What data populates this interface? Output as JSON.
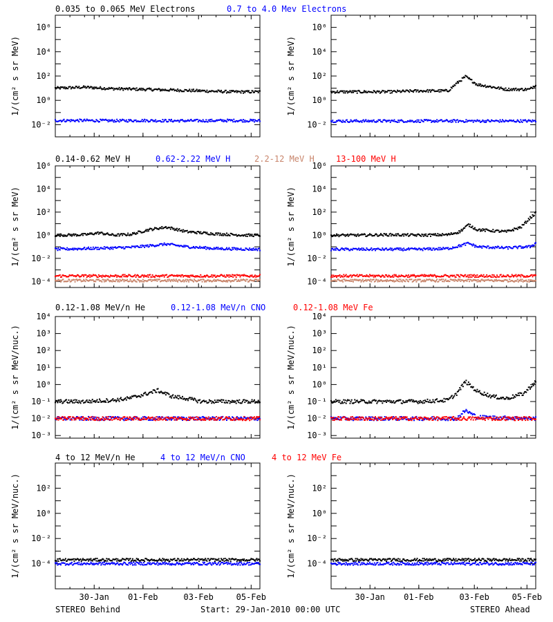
{
  "colors": {
    "black": "#000000",
    "blue": "#0000ff",
    "salmon": "#c8846a",
    "red": "#ff0000"
  },
  "footer": {
    "left": "STEREO Behind",
    "center": "Start: 29-Jan-2010 00:00 UTC",
    "right": "STEREO Ahead"
  },
  "chart_data": [
    {
      "type": "scatter",
      "panel": "electrons-behind",
      "yscale": "log",
      "ylim": [
        0.001,
        10000000
      ],
      "xlim_days": [
        0,
        7
      ],
      "ylabel": "1/(cm² s sr MeV)",
      "yticks": [
        "10⁻²",
        "10⁰",
        "10²",
        "10⁴",
        "10⁶"
      ],
      "xticks": [
        "30-Jan",
        "01-Feb",
        "03-Feb",
        "05-Feb"
      ],
      "legend": [
        {
          "name": "0.035 to 0.065 MeV Electrons",
          "color": "#000000"
        },
        {
          "name": "0.7 to 4.0 Mev Electrons",
          "color": "#0000ff"
        }
      ],
      "series": [
        {
          "name": "0.035 to 0.065 MeV Electrons",
          "color": "#000000",
          "x": [
            0,
            1,
            2,
            3,
            4,
            5,
            6,
            7
          ],
          "y": [
            10,
            12,
            9,
            8,
            7,
            6,
            5,
            5
          ]
        },
        {
          "name": "0.7 to 4.0 Mev Electrons",
          "color": "#0000ff",
          "x": [
            0,
            1,
            2,
            3,
            4,
            5,
            6,
            7
          ],
          "y": [
            0.022,
            0.022,
            0.021,
            0.022,
            0.021,
            0.021,
            0.022,
            0.021
          ]
        }
      ]
    },
    {
      "type": "scatter",
      "panel": "electrons-ahead",
      "yscale": "log",
      "ylim": [
        0.001,
        10000000
      ],
      "xlim_days": [
        0,
        7
      ],
      "ylabel": "1/(cm² s sr MeV)",
      "yticks": [
        "10⁻²",
        "10⁰",
        "10²",
        "10⁴",
        "10⁶"
      ],
      "xticks": [
        "30-Jan",
        "01-Feb",
        "03-Feb",
        "05-Feb"
      ],
      "legend": [],
      "series": [
        {
          "name": "0.035 to 0.065 MeV Electrons",
          "color": "#000000",
          "x": [
            0,
            1,
            2,
            3,
            4,
            4.3,
            4.6,
            5,
            6,
            6.8,
            7
          ],
          "y": [
            5,
            5,
            5,
            6,
            6,
            25,
            90,
            20,
            8,
            8,
            20
          ]
        },
        {
          "name": "0.7 to 4.0 Mev Electrons",
          "color": "#0000ff",
          "x": [
            0,
            1,
            2,
            3,
            4,
            5,
            6,
            7
          ],
          "y": [
            0.02,
            0.02,
            0.02,
            0.02,
            0.02,
            0.02,
            0.02,
            0.02
          ]
        }
      ]
    },
    {
      "type": "scatter",
      "panel": "protons-behind",
      "yscale": "log",
      "ylim": [
        3e-05,
        1000000
      ],
      "xlim_days": [
        0,
        7
      ],
      "ylabel": "1/(cm² s sr MeV)",
      "yticks": [
        "10⁻⁴",
        "10⁻²",
        "10⁰",
        "10²",
        "10⁴",
        "10⁶"
      ],
      "xticks": [
        "30-Jan",
        "01-Feb",
        "03-Feb",
        "05-Feb"
      ],
      "legend": [
        {
          "name": "0.14-0.62 MeV H",
          "color": "#000000"
        },
        {
          "name": "0.62-2.22 MeV H",
          "color": "#0000ff"
        },
        {
          "name": "2.2-12 MeV H",
          "color": "#c8846a"
        },
        {
          "name": "13-100 MeV H",
          "color": "#ff0000"
        }
      ],
      "series": [
        {
          "name": "0.14-0.62 MeV H",
          "color": "#000000",
          "x": [
            0,
            1,
            1.5,
            2,
            2.6,
            3.2,
            3.8,
            4.5,
            5.5,
            6.5,
            7
          ],
          "y": [
            1,
            1.1,
            1.6,
            1,
            1.2,
            3,
            5,
            2,
            1.3,
            1,
            1
          ]
        },
        {
          "name": "0.62-2.22 MeV H",
          "color": "#0000ff",
          "x": [
            0,
            1,
            2,
            2.6,
            3.2,
            3.8,
            4.5,
            5.5,
            7
          ],
          "y": [
            0.06,
            0.07,
            0.08,
            0.09,
            0.12,
            0.17,
            0.1,
            0.07,
            0.06
          ]
        },
        {
          "name": "2.2-12 MeV H",
          "color": "#c8846a",
          "x": [
            0,
            7
          ],
          "y": [
            0.00012,
            0.00012
          ]
        },
        {
          "name": "13-100 MeV H",
          "color": "#ff0000",
          "x": [
            0,
            7
          ],
          "y": [
            0.0003,
            0.0003
          ]
        }
      ]
    },
    {
      "type": "scatter",
      "panel": "protons-ahead",
      "yscale": "log",
      "ylim": [
        3e-05,
        1000000
      ],
      "xlim_days": [
        0,
        7
      ],
      "ylabel": "1/(cm² s sr MeV)",
      "yticks": [
        "10⁻⁴",
        "10⁻²",
        "10⁰",
        "10²",
        "10⁴",
        "10⁶"
      ],
      "xticks": [
        "30-Jan",
        "01-Feb",
        "03-Feb",
        "05-Feb"
      ],
      "legend": [],
      "series": [
        {
          "name": "0.14-0.62 MeV H",
          "color": "#000000",
          "x": [
            0,
            1,
            2,
            3,
            4,
            4.4,
            4.7,
            5,
            6,
            6.5,
            6.8,
            7
          ],
          "y": [
            1,
            1,
            1.1,
            1,
            1.1,
            2,
            8,
            3,
            2,
            5,
            30,
            80
          ]
        },
        {
          "name": "0.62-2.22 MeV H",
          "color": "#0000ff",
          "x": [
            0,
            1,
            2,
            3,
            4,
            4.4,
            4.7,
            5,
            6,
            6.8,
            7
          ],
          "y": [
            0.06,
            0.06,
            0.06,
            0.06,
            0.07,
            0.12,
            0.2,
            0.1,
            0.08,
            0.1,
            0.2
          ]
        },
        {
          "name": "2.2-12 MeV H",
          "color": "#c8846a",
          "x": [
            0,
            7
          ],
          "y": [
            0.00012,
            0.00012
          ]
        },
        {
          "name": "13-100 MeV H",
          "color": "#ff0000",
          "x": [
            0,
            7
          ],
          "y": [
            0.0003,
            0.0003
          ]
        }
      ]
    },
    {
      "type": "scatter",
      "panel": "low-energy-ions-behind",
      "yscale": "log",
      "ylim": [
        0.0007,
        10000
      ],
      "xlim_days": [
        0,
        7
      ],
      "ylabel": "1/(cm² s sr MeV/nuc.)",
      "yticks": [
        "10⁻³",
        "10⁻²",
        "10⁻¹",
        "10⁰",
        "10¹",
        "10²",
        "10³",
        "10⁴"
      ],
      "xticks": [
        "30-Jan",
        "01-Feb",
        "03-Feb",
        "05-Feb"
      ],
      "legend": [
        {
          "name": "0.12-1.08 MeV/n He",
          "color": "#000000"
        },
        {
          "name": "0.12-1.08 MeV/n CNO",
          "color": "#0000ff"
        },
        {
          "name": "0.12-1.08 MeV Fe",
          "color": "#ff0000"
        }
      ],
      "series": [
        {
          "name": "0.12-1.08 MeV/n He",
          "color": "#000000",
          "x": [
            0,
            1,
            2,
            2.5,
            3,
            3.5,
            4,
            4.5,
            5,
            6,
            7
          ],
          "y": [
            0.1,
            0.1,
            0.12,
            0.15,
            0.25,
            0.45,
            0.2,
            0.15,
            0.1,
            0.1,
            0.1
          ]
        },
        {
          "name": "0.12-1.08 MeV/n CNO",
          "color": "#0000ff",
          "x": [
            0,
            7
          ],
          "y": [
            0.01,
            0.01
          ]
        },
        {
          "name": "0.12-1.08 MeV Fe",
          "color": "#ff0000",
          "x": [
            0,
            7
          ],
          "y": [
            0.01,
            0.01
          ]
        }
      ]
    },
    {
      "type": "scatter",
      "panel": "low-energy-ions-ahead",
      "yscale": "log",
      "ylim": [
        0.0007,
        10000
      ],
      "xlim_days": [
        0,
        7
      ],
      "ylabel": "1/(cm² s sr MeV/nuc.)",
      "yticks": [
        "10⁻³",
        "10⁻²",
        "10⁻¹",
        "10⁰",
        "10¹",
        "10²",
        "10³",
        "10⁴"
      ],
      "xticks": [
        "30-Jan",
        "01-Feb",
        "03-Feb",
        "05-Feb"
      ],
      "legend": [],
      "series": [
        {
          "name": "0.12-1.08 MeV/n He",
          "color": "#000000",
          "x": [
            0,
            1,
            2,
            3,
            4,
            4.3,
            4.6,
            5,
            5.5,
            6,
            6.6,
            7
          ],
          "y": [
            0.1,
            0.1,
            0.1,
            0.1,
            0.12,
            0.3,
            1.5,
            0.4,
            0.2,
            0.15,
            0.3,
            1.5
          ]
        },
        {
          "name": "0.12-1.08 MeV/n CNO",
          "color": "#0000ff",
          "x": [
            0,
            4.3,
            4.6,
            5,
            7
          ],
          "y": [
            0.01,
            0.01,
            0.03,
            0.012,
            0.01
          ]
        },
        {
          "name": "0.12-1.08 MeV Fe",
          "color": "#ff0000",
          "x": [
            0,
            7
          ],
          "y": [
            0.01,
            0.01
          ]
        }
      ]
    },
    {
      "type": "scatter",
      "panel": "high-energy-ions-behind",
      "yscale": "log",
      "ylim": [
        1e-06,
        10000
      ],
      "xlim_days": [
        0,
        7
      ],
      "ylabel": "1/(cm² s sr MeV/nuc.)",
      "yticks": [
        "10⁻⁴",
        "10⁻²",
        "10⁰",
        "10²"
      ],
      "xticks": [
        "30-Jan",
        "01-Feb",
        "03-Feb",
        "05-Feb"
      ],
      "legend": [
        {
          "name": "4 to 12 MeV/n He",
          "color": "#000000"
        },
        {
          "name": "4 to 12 MeV/n CNO",
          "color": "#0000ff"
        },
        {
          "name": "4 to 12 MeV Fe",
          "color": "#ff0000"
        }
      ],
      "series": [
        {
          "name": "4 to 12 MeV/n He",
          "color": "#000000",
          "x": [
            0,
            7
          ],
          "y": [
            0.0002,
            0.0002
          ]
        },
        {
          "name": "4 to 12 MeV/n CNO",
          "color": "#0000ff",
          "x": [
            0,
            7
          ],
          "y": [
            0.0001,
            0.0001
          ]
        }
      ]
    },
    {
      "type": "scatter",
      "panel": "high-energy-ions-ahead",
      "yscale": "log",
      "ylim": [
        1e-06,
        10000
      ],
      "xlim_days": [
        0,
        7
      ],
      "ylabel": "1/(cm² s sr MeV/nuc.)",
      "yticks": [
        "10⁻⁴",
        "10⁻²",
        "10⁰",
        "10²"
      ],
      "xticks": [
        "30-Jan",
        "01-Feb",
        "03-Feb",
        "05-Feb"
      ],
      "legend": [],
      "series": [
        {
          "name": "4 to 12 MeV/n He",
          "color": "#000000",
          "x": [
            0,
            7
          ],
          "y": [
            0.0002,
            0.0002
          ]
        },
        {
          "name": "4 to 12 MeV/n CNO",
          "color": "#0000ff",
          "x": [
            0,
            7
          ],
          "y": [
            0.0001,
            0.0001
          ]
        }
      ]
    }
  ]
}
